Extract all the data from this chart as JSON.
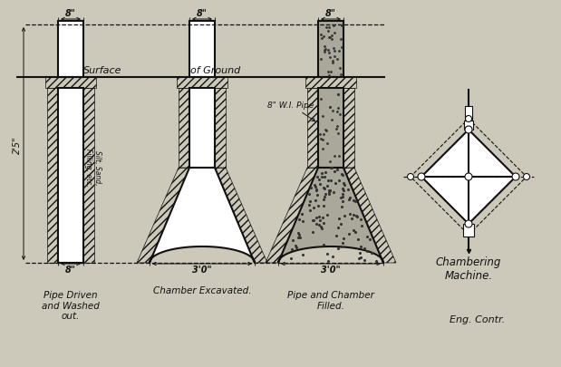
{
  "bg_color": "#ccc9bb",
  "line_color": "#111111",
  "caption1": "Pipe Driven\nand Washed\nout.",
  "caption2": "Chamber Excavated.",
  "caption3": "Pipe and Chamber\nFilled.",
  "caption4": "Chambering\nMachine.",
  "caption5": "Eng. Contr.",
  "label_surface": "Surface",
  "label_ground": "of Ground",
  "label_pipe": "8\" W.I. Pipe",
  "label_fill": "Silt, Sand,\nFilling, etc.",
  "label_8in_1": "8\"",
  "label_8in_2": "8\"",
  "label_8in_3": "8\"",
  "label_8in_bot": "8\"",
  "label_25": "2'5\"",
  "label_30_1": "3'0\"",
  "label_30_2": "3'0\""
}
